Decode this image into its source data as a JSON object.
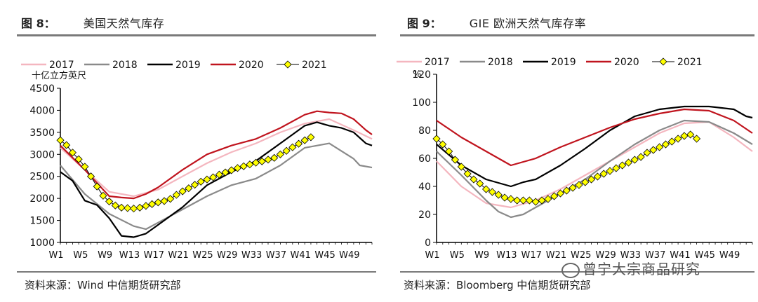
{
  "chart_data": [
    {
      "type": "line",
      "figure_label": "图 8：",
      "title": "美国天然气库存",
      "ylabel": "十亿立方英尺",
      "ylim": [
        1000,
        4500
      ],
      "yticks": [
        1000,
        1500,
        2000,
        2500,
        3000,
        3500,
        4000,
        4500
      ],
      "xlim": [
        1,
        52
      ],
      "xticks": [
        "W1",
        "W5",
        "W9",
        "W13",
        "W17",
        "W21",
        "W25",
        "W29",
        "W33",
        "W37",
        "W41",
        "W45",
        "W49"
      ],
      "grid": false,
      "legend": "top",
      "source": "资料来源：Wind  中信期货研究部",
      "series": [
        {
          "name": "2017",
          "color": "#f4b6bf",
          "x": [
            1,
            5,
            9,
            13,
            17,
            21,
            25,
            29,
            33,
            37,
            41,
            45,
            49,
            52
          ],
          "y": [
            3150,
            2650,
            2150,
            2050,
            2200,
            2500,
            2800,
            3050,
            3250,
            3500,
            3700,
            3800,
            3550,
            3350
          ]
        },
        {
          "name": "2018",
          "color": "#8a8a8a",
          "x": [
            1,
            5,
            9,
            13,
            15,
            17,
            21,
            25,
            29,
            33,
            37,
            41,
            45,
            49,
            50,
            52
          ],
          "y": [
            2750,
            2100,
            1650,
            1370,
            1300,
            1450,
            1750,
            2050,
            2300,
            2450,
            2750,
            3150,
            3250,
            2900,
            2750,
            2700
          ]
        },
        {
          "name": "2019",
          "color": "#000000",
          "x": [
            1,
            3,
            5,
            7,
            9,
            11,
            13,
            15,
            17,
            21,
            25,
            29,
            33,
            37,
            41,
            43,
            45,
            47,
            49,
            51,
            52
          ],
          "y": [
            2600,
            2400,
            1950,
            1850,
            1550,
            1150,
            1120,
            1200,
            1400,
            1800,
            2300,
            2600,
            2850,
            3250,
            3650,
            3730,
            3650,
            3600,
            3500,
            3250,
            3200
          ]
        },
        {
          "name": "2020",
          "color": "#c0141e",
          "x": [
            1,
            5,
            9,
            11,
            13,
            15,
            17,
            21,
            25,
            29,
            33,
            37,
            41,
            43,
            45,
            47,
            49,
            51,
            52
          ],
          "y": [
            3200,
            2650,
            2050,
            2020,
            2000,
            2100,
            2250,
            2650,
            3000,
            3200,
            3350,
            3600,
            3900,
            3980,
            3950,
            3930,
            3800,
            3550,
            3450
          ]
        },
        {
          "name": "2021",
          "color": "#ffff00",
          "marker": "diamond",
          "x": [
            1,
            2,
            3,
            4,
            5,
            6,
            7,
            8,
            9,
            10,
            11,
            12,
            13,
            14,
            15,
            16,
            17,
            18,
            19,
            20,
            21,
            22,
            23,
            24,
            25,
            26,
            27,
            28,
            29,
            30,
            31,
            32,
            33,
            34,
            35,
            36,
            37,
            38,
            39,
            40,
            41,
            42
          ],
          "y": [
            3320,
            3210,
            3040,
            2890,
            2720,
            2500,
            2270,
            2060,
            1930,
            1840,
            1790,
            1780,
            1770,
            1790,
            1830,
            1870,
            1910,
            1940,
            1990,
            2080,
            2160,
            2230,
            2310,
            2380,
            2430,
            2480,
            2540,
            2590,
            2640,
            2690,
            2730,
            2770,
            2810,
            2840,
            2880,
            2920,
            3000,
            3080,
            3160,
            3240,
            3320,
            3390
          ]
        }
      ]
    },
    {
      "type": "line",
      "figure_label": "图 9：",
      "title": "GIE 欧洲天然气库存率",
      "ylabel": "%",
      "ylim": [
        0,
        120
      ],
      "yticks": [
        0,
        20,
        40,
        60,
        80,
        100,
        120
      ],
      "xlim": [
        1,
        52
      ],
      "xticks": [
        "W1",
        "W5",
        "W9",
        "W13",
        "W17",
        "W21",
        "W25",
        "W29",
        "W33",
        "W37",
        "W41",
        "W45",
        "W49"
      ],
      "grid": false,
      "legend": "top",
      "source": "资料来源：Bloomberg  中信期货研究部",
      "series": [
        {
          "name": "2017",
          "color": "#f4b6bf",
          "x": [
            1,
            5,
            9,
            13,
            17,
            21,
            25,
            29,
            33,
            37,
            41,
            45,
            49,
            52
          ],
          "y": [
            58,
            40,
            28,
            25,
            30,
            38,
            48,
            58,
            68,
            78,
            85,
            86,
            75,
            65
          ]
        },
        {
          "name": "2018",
          "color": "#8a8a8a",
          "x": [
            1,
            5,
            9,
            11,
            13,
            15,
            17,
            21,
            25,
            29,
            33,
            37,
            41,
            45,
            49,
            52
          ],
          "y": [
            65,
            48,
            30,
            22,
            18,
            20,
            25,
            35,
            45,
            58,
            70,
            80,
            87,
            86,
            78,
            70
          ]
        },
        {
          "name": "2019",
          "color": "#000000",
          "x": [
            1,
            5,
            9,
            13,
            15,
            17,
            21,
            25,
            29,
            33,
            37,
            41,
            45,
            49,
            51,
            52
          ],
          "y": [
            70,
            55,
            45,
            40,
            43,
            45,
            55,
            67,
            80,
            90,
            95,
            97,
            97,
            95,
            90,
            89
          ]
        },
        {
          "name": "2020",
          "color": "#c0141e",
          "x": [
            1,
            5,
            9,
            13,
            17,
            21,
            25,
            29,
            33,
            37,
            41,
            45,
            49,
            52
          ],
          "y": [
            87,
            75,
            65,
            55,
            60,
            68,
            75,
            82,
            88,
            92,
            95,
            94,
            87,
            78
          ]
        },
        {
          "name": "2021",
          "color": "#ffff00",
          "marker": "diamond",
          "x": [
            1,
            2,
            3,
            4,
            5,
            6,
            7,
            8,
            9,
            10,
            11,
            12,
            13,
            14,
            15,
            16,
            17,
            18,
            19,
            20,
            21,
            22,
            23,
            24,
            25,
            26,
            27,
            28,
            29,
            30,
            31,
            32,
            33,
            34,
            35,
            36,
            37,
            38,
            39,
            40,
            41,
            42,
            43
          ],
          "y": [
            74,
            70,
            65,
            59,
            54,
            49,
            45,
            42,
            38,
            36,
            34,
            32,
            31,
            30,
            30,
            30,
            29,
            30,
            31,
            33,
            35,
            37,
            39,
            41,
            43,
            45,
            47,
            49,
            51,
            53,
            55,
            57,
            59,
            61,
            64,
            66,
            68,
            70,
            72,
            74,
            76,
            77,
            74
          ]
        }
      ]
    }
  ],
  "watermark": "曾宁大宗商品研究"
}
